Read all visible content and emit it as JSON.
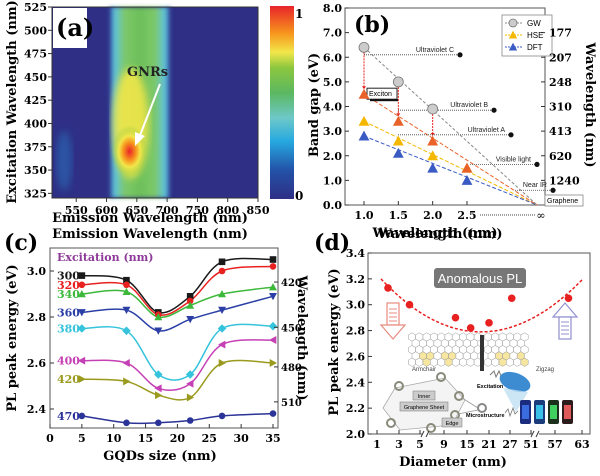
{
  "chart_data": [
    {
      "panel_label": "(a)",
      "type": "heatmap",
      "xlabel": "Emission Wavelength (nm)",
      "ylabel": "Excitation Wavelength (nm)",
      "xlim": [
        510,
        850
      ],
      "ylim": [
        320,
        525
      ],
      "x_ticks": [
        "550",
        "600",
        "650",
        "700",
        "750",
        "800",
        "850"
      ],
      "y_ticks": [
        "325",
        "350",
        "375",
        "400",
        "425",
        "450",
        "475",
        "500",
        "525"
      ],
      "colorbar": {
        "min_label": "0",
        "max_label": "1",
        "range": [
          0,
          1
        ]
      },
      "annotation": "GNRs",
      "peak": {
        "emission": 638,
        "excitation": 370,
        "intensity": 1.0
      },
      "description": "Strong emission band 610–700 nm across all excitations; maximum near 640 nm emission / 370 nm excitation"
    },
    {
      "panel_label": "(b)",
      "type": "scatter",
      "xlabel": "Wavelength (nm)",
      "ylabel": "Band gap (eV)",
      "ylabel_right": "Wavelength (nm)",
      "xlim": [
        0.8,
        3.5
      ],
      "ylim": [
        0,
        8
      ],
      "x_ticks": [
        "1.0",
        "1.5",
        "2.0",
        "2.5"
      ],
      "x_extra_tick": "∞",
      "y_ticks": [
        "0.0",
        "1.0",
        "2.0",
        "3.0",
        "4.0",
        "5.0",
        "6.0",
        "7.0",
        "8.0"
      ],
      "right_ticks": [
        {
          "label": "177",
          "ev": 7.0
        },
        {
          "label": "207",
          "ev": 6.0
        },
        {
          "label": "248",
          "ev": 5.0
        },
        {
          "label": "310",
          "ev": 4.0
        },
        {
          "label": "413",
          "ev": 3.0
        },
        {
          "label": "620",
          "ev": 2.0
        },
        {
          "label": "1240",
          "ev": 1.0
        }
      ],
      "legend_position": "top-right",
      "series": [
        {
          "name": "GW",
          "color": "#b0b0b0",
          "marker": "circle",
          "x": [
            1.0,
            1.5,
            2.0
          ],
          "y": [
            6.4,
            5.0,
            3.9
          ]
        },
        {
          "name": "HSE",
          "color": "#f5b800",
          "marker": "triangle",
          "x": [
            1.0,
            1.5,
            2.0,
            2.5
          ],
          "y": [
            3.4,
            2.6,
            2.0,
            1.5
          ]
        },
        {
          "name": "DFT",
          "color": "#3b5bc4",
          "marker": "triangle",
          "x": [
            1.0,
            1.5,
            2.0,
            2.5
          ],
          "y": [
            2.8,
            2.1,
            1.5,
            1.0
          ]
        },
        {
          "name": "Exciton",
          "color": "#e8622a",
          "marker": "triangle",
          "x": [
            1.0,
            1.5,
            2.0,
            2.5
          ],
          "y": [
            4.5,
            3.4,
            2.6,
            1.5
          ]
        }
      ],
      "annotations": [
        {
          "text": "Ultraviolet C",
          "ev": 6.1
        },
        {
          "text": "Ultraviolet B",
          "ev": 3.85
        },
        {
          "text": "Ultraviolet A",
          "ev": 2.85
        },
        {
          "text": "Visible light",
          "ev": 1.65
        },
        {
          "text": "Near IR",
          "ev": 0.6
        },
        {
          "text": "Exciton",
          "ev": 4.5
        },
        {
          "text": "Graphene",
          "ev": 0.0
        }
      ]
    },
    {
      "panel_label": "(c)",
      "type": "line",
      "xlabel": "GQDs size (nm)",
      "ylabel": "PL peak energy (eV)",
      "ylabel_right": "Wavelength (nm)",
      "top_label": "Emission Wavelength (nm)",
      "legend_title": "Excitation (nm)",
      "xlim": [
        0,
        37
      ],
      "ylim": [
        2.32,
        3.1
      ],
      "x_ticks": [
        "0",
        "5",
        "10",
        "15",
        "20",
        "25",
        "30",
        "35"
      ],
      "y_ticks": [
        "2.4",
        "2.6",
        "2.8",
        "3.0"
      ],
      "right_ticks": [
        {
          "label": "420",
          "ev": 2.952
        },
        {
          "label": "450",
          "ev": 2.755
        },
        {
          "label": "480",
          "ev": 2.583
        },
        {
          "label": "510",
          "ev": 2.431
        }
      ],
      "x": [
        5,
        12,
        17,
        22,
        27,
        35
      ],
      "series": [
        {
          "name": "300",
          "color": "#1a1a1a",
          "marker": "square",
          "values": [
            2.98,
            2.96,
            2.82,
            2.89,
            3.04,
            3.05
          ]
        },
        {
          "name": "320",
          "color": "#e8201f",
          "marker": "circle",
          "values": [
            2.94,
            2.94,
            2.81,
            2.87,
            3.0,
            3.02
          ]
        },
        {
          "name": "340",
          "color": "#3cb83a",
          "marker": "triangle-up",
          "values": [
            2.9,
            2.91,
            2.8,
            2.85,
            2.9,
            2.93
          ]
        },
        {
          "name": "360",
          "color": "#2b3fa6",
          "marker": "triangle-down",
          "values": [
            2.82,
            2.83,
            2.74,
            2.79,
            2.83,
            2.89
          ]
        },
        {
          "name": "380",
          "color": "#36c3dc",
          "marker": "diamond",
          "values": [
            2.75,
            2.74,
            2.55,
            2.55,
            2.75,
            2.76
          ]
        },
        {
          "name": "400",
          "color": "#c53fb5",
          "marker": "triangle-left",
          "values": [
            2.61,
            2.6,
            2.49,
            2.51,
            2.68,
            2.7
          ]
        },
        {
          "name": "420",
          "color": "#9a9a1e",
          "marker": "triangle-right",
          "values": [
            2.53,
            2.52,
            2.46,
            2.45,
            2.6,
            2.6
          ]
        },
        {
          "name": "470",
          "color": "#2a3398",
          "marker": "circle",
          "values": [
            2.37,
            2.34,
            2.34,
            2.35,
            2.37,
            2.38
          ]
        }
      ]
    },
    {
      "panel_label": "(d)",
      "type": "scatter",
      "xlabel": "Diameter (nm)",
      "ylabel": "PL peak energy (eV)",
      "top_label": "Wavelength (nm)",
      "title": "Anomalous PL",
      "ylim": [
        2.0,
        3.4
      ],
      "x_ticks": [
        "1",
        "3",
        "5",
        "9",
        "15",
        "21",
        "27",
        "51",
        "57",
        "63"
      ],
      "y_ticks": [
        "2.0",
        "2.2",
        "2.4",
        "2.6",
        "2.8",
        "3.0",
        "3.2",
        "3.4"
      ],
      "axis_breaks": 2,
      "series": [
        {
          "name": "PL peak",
          "color": "#e8201f",
          "marker": "circle",
          "x": [
            "2",
            "4",
            "12",
            "16",
            "21",
            "29",
            "60"
          ],
          "values": [
            3.13,
            3.0,
            2.9,
            2.82,
            2.86,
            3.05,
            3.05
          ]
        }
      ],
      "fit": {
        "style": "dashed",
        "color": "#e8201f",
        "min_ev": 2.79,
        "end_ev": 3.2
      },
      "inset_labels": [
        "Armchair",
        "Zigzag",
        "Excitation",
        "Inner",
        "Graphene Sheet",
        "Microstructure",
        "Edge"
      ]
    }
  ]
}
